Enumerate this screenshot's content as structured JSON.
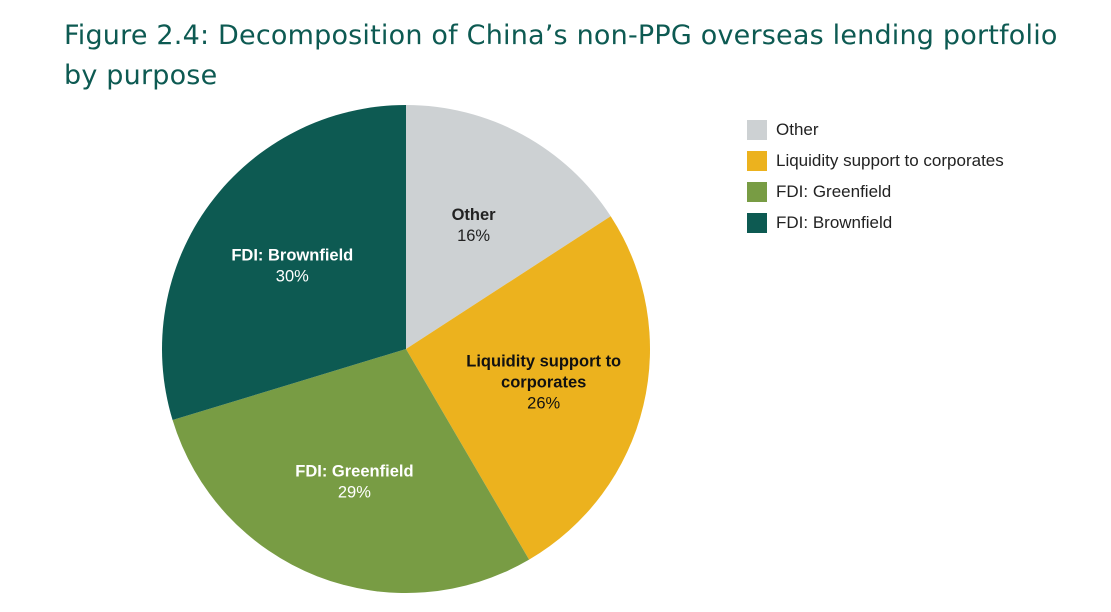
{
  "title": "Figure 2.4: Decomposition of China’s non-PPG overseas lending portfolio by purpose",
  "chart_data": {
    "type": "pie",
    "title": "Figure 2.4: Decomposition of China’s non-PPG overseas lending portfolio by purpose",
    "slices": [
      {
        "label": "Other",
        "value": 16,
        "display": "16%",
        "color": "#cdd1d3",
        "text_color": "#222222",
        "label_lines": [
          "Other"
        ]
      },
      {
        "label": "Liquidity support to corporates",
        "value": 26,
        "display": "26%",
        "color": "#ecb21e",
        "text_color": "#111111",
        "label_lines": [
          "Liquidity support to",
          "corporates"
        ]
      },
      {
        "label": "FDI: Greenfield",
        "value": 29,
        "display": "29%",
        "color": "#789c44",
        "text_color": "#ffffff",
        "label_lines": [
          "FDI: Greenfield"
        ]
      },
      {
        "label": "FDI: Brownfield",
        "value": 30,
        "display": "30%",
        "color": "#0d5a52",
        "text_color": "#ffffff",
        "label_lines": [
          "FDI: Brownfield"
        ]
      }
    ],
    "legend": {
      "placement": "top-right",
      "entries": [
        {
          "label": "Other",
          "color": "#cdd1d3"
        },
        {
          "label": "Liquidity support to corporates",
          "color": "#ecb21e"
        },
        {
          "label": "FDI: Greenfield",
          "color": "#789c44"
        },
        {
          "label": "FDI: Brownfield",
          "color": "#0d5a52"
        }
      ]
    }
  }
}
